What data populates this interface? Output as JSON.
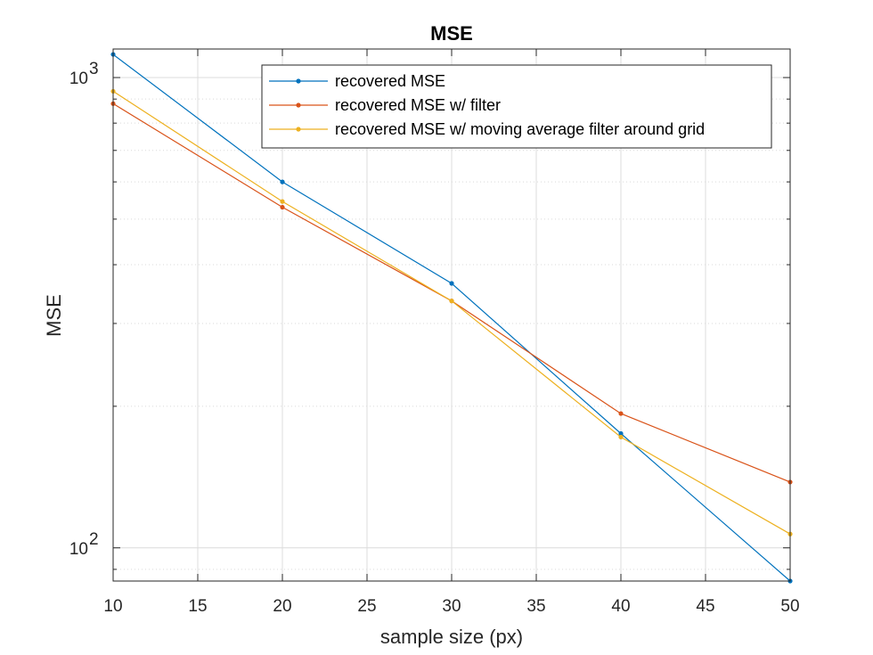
{
  "chart_data": {
    "type": "line",
    "title": "MSE",
    "xlabel": "sample size (px)",
    "ylabel": "MSE",
    "x": [
      10,
      20,
      30,
      40,
      50
    ],
    "xlim": [
      10,
      50
    ],
    "xticks": [
      10,
      15,
      20,
      25,
      30,
      35,
      40,
      45,
      50
    ],
    "xtick_labels": [
      "10",
      "15",
      "20",
      "25",
      "30",
      "35",
      "40",
      "45",
      "50"
    ],
    "yscale": "log",
    "ylim": [
      85,
      1150
    ],
    "yticks": [
      {
        "base": "10",
        "exponent": "2",
        "value": 100
      },
      {
        "base": "10",
        "exponent": "3",
        "value": 1000
      }
    ],
    "grid": true,
    "legend_position": "top-right",
    "series": [
      {
        "name": "recovered MSE",
        "color": "#0072BD",
        "values": [
          1120,
          600,
          365,
          175,
          85
        ]
      },
      {
        "name": "recovered MSE w/ filter",
        "color": "#D95319",
        "values": [
          880,
          530,
          335,
          193,
          138
        ]
      },
      {
        "name": "recovered MSE w/ moving average filter around grid",
        "color": "#EDB120",
        "values": [
          935,
          545,
          335,
          172,
          107
        ]
      }
    ]
  }
}
